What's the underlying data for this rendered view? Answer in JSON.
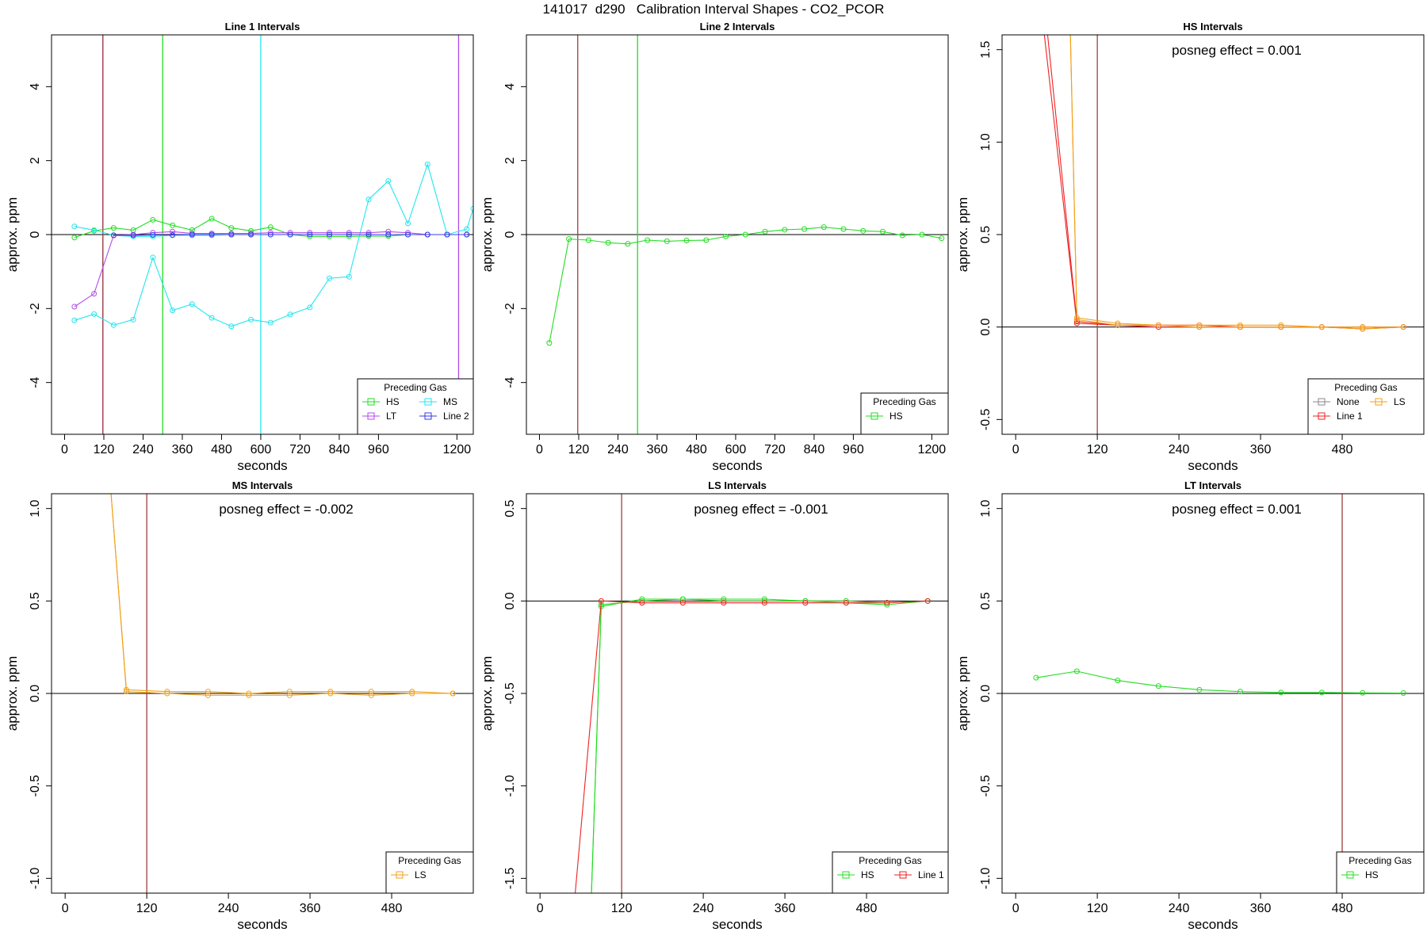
{
  "title": "141017  d290   Calibration Interval Shapes - CO2_PCOR",
  "colors": {
    "HS": "#22dd22",
    "MS": "#22e6ee",
    "LT": "#b04ce8",
    "Line 2": "#3a3ae8",
    "LS": "#f0a11a",
    "Line 1": "#ee2222",
    "None": "#888888",
    "refline": "#a04040",
    "axis": "#000000"
  },
  "chart_data": [
    {
      "type": "line",
      "title": "Line 1 Intervals",
      "xlabel": "seconds",
      "ylabel": "approx. ppm",
      "xlim": [
        -40,
        1250
      ],
      "ylim": [
        -5.4,
        5.4
      ],
      "xticks": [
        0,
        120,
        240,
        360,
        480,
        600,
        720,
        840,
        960,
        1200
      ],
      "yticks": [
        -4,
        -2,
        0,
        2,
        4
      ],
      "vlines": [
        {
          "x": 117,
          "color": "LT"
        },
        {
          "x": 117,
          "color": "refline"
        },
        {
          "x": 300,
          "color": "HS"
        },
        {
          "x": 600,
          "color": "MS"
        },
        {
          "x": 1205,
          "color": "LT"
        }
      ],
      "annotation": "",
      "legend": {
        "title": "Preceding Gas",
        "position": "bottom-right",
        "cols": 2,
        "entries": [
          "HS",
          "MS",
          "LT",
          "Line 2"
        ]
      },
      "series": [
        {
          "name": "HS",
          "x": [
            30,
            90,
            150,
            210,
            270,
            330,
            390,
            450,
            510,
            570,
            630,
            690,
            750,
            810,
            870,
            930,
            990,
            1050,
            1110,
            1170,
            1230
          ],
          "values": [
            -0.08,
            0.1,
            0.18,
            0.12,
            0.4,
            0.25,
            0.12,
            0.43,
            0.18,
            0.1,
            0.2,
            0.0,
            -0.05,
            -0.05,
            -0.05,
            -0.04,
            -0.04,
            0.0,
            0.0,
            0.0,
            0.0
          ]
        },
        {
          "name": "MS",
          "x": [
            30,
            90,
            150,
            210,
            270,
            330,
            390,
            450,
            510,
            570,
            630,
            690,
            750,
            810,
            870,
            930,
            990,
            1050,
            1110,
            1170,
            1230,
            1250
          ],
          "values": [
            0.22,
            0.12,
            -0.02,
            -0.05,
            -0.05,
            -0.02,
            -0.02,
            -0.02,
            0.0,
            0.0,
            0.0,
            0.0,
            0.0,
            0.0,
            0.0,
            0.0,
            0.0,
            0.0,
            0.0,
            0.0,
            0.15,
            0.7
          ]
        },
        {
          "name": "MS",
          "x": [
            30,
            90,
            150,
            210,
            270,
            330,
            390,
            450,
            510,
            570,
            630,
            690,
            750,
            810,
            870,
            930,
            990,
            1050,
            1110,
            1170,
            1230
          ],
          "values": [
            -2.32,
            -2.15,
            -2.45,
            -2.3,
            -0.62,
            -2.05,
            -1.88,
            -2.25,
            -2.48,
            -2.3,
            -2.38,
            -2.16,
            -1.97,
            -1.18,
            -1.14,
            0.95,
            1.45,
            0.3,
            1.9,
            0.0,
            0.0
          ]
        },
        {
          "name": "LT",
          "x": [
            30,
            90,
            150,
            210,
            270,
            330,
            390,
            450,
            510,
            570,
            630,
            690,
            750,
            810,
            870,
            930,
            990,
            1050,
            1110,
            1170,
            1230
          ],
          "values": [
            -1.95,
            -1.6,
            -0.02,
            0.0,
            0.05,
            0.08,
            0.03,
            0.03,
            0.03,
            0.03,
            0.05,
            0.05,
            0.05,
            0.05,
            0.05,
            0.05,
            0.08,
            0.05,
            0.0,
            0.0,
            0.0
          ]
        },
        {
          "name": "Line 2",
          "x": [
            150,
            210,
            270,
            330,
            390,
            450,
            510,
            570,
            630,
            690,
            750,
            810,
            870,
            930,
            990,
            1050,
            1110,
            1170,
            1230
          ],
          "values": [
            -0.02,
            -0.02,
            -0.01,
            -0.01,
            0.0,
            0.0,
            0.0,
            0.0,
            0.0,
            0.0,
            0.0,
            0.0,
            0.0,
            0.0,
            0.0,
            0.0,
            0.0,
            0.0,
            0.0
          ]
        }
      ]
    },
    {
      "type": "line",
      "title": "Line 2 Intervals",
      "xlabel": "seconds",
      "ylabel": "approx. ppm",
      "xlim": [
        -40,
        1250
      ],
      "ylim": [
        -5.4,
        5.4
      ],
      "xticks": [
        0,
        120,
        240,
        360,
        480,
        600,
        720,
        840,
        960,
        1200
      ],
      "yticks": [
        -4,
        -2,
        0,
        2,
        4
      ],
      "vlines": [
        {
          "x": 117,
          "color": "refline"
        },
        {
          "x": 300,
          "color": "HS"
        }
      ],
      "annotation": "",
      "legend": {
        "title": "Preceding Gas",
        "position": "bottom-right",
        "cols": 1,
        "entries": [
          "HS"
        ]
      },
      "series": [
        {
          "name": "HS",
          "x": [
            30,
            90,
            150,
            210,
            270,
            330,
            390,
            450,
            510,
            570,
            630,
            690,
            750,
            810,
            870,
            930,
            990,
            1050,
            1110,
            1170,
            1230
          ],
          "values": [
            -2.93,
            -0.12,
            -0.15,
            -0.22,
            -0.25,
            -0.15,
            -0.18,
            -0.16,
            -0.15,
            -0.05,
            0.0,
            0.08,
            0.13,
            0.15,
            0.2,
            0.15,
            0.1,
            0.08,
            -0.02,
            0.0,
            -0.1
          ]
        }
      ]
    },
    {
      "type": "line",
      "title": "HS Intervals",
      "xlabel": "seconds",
      "ylabel": "approx. ppm",
      "xlim": [
        -20,
        600
      ],
      "ylim": [
        -0.58,
        1.58
      ],
      "xticks": [
        0,
        120,
        240,
        360,
        480
      ],
      "yticks": [
        -0.5,
        0.0,
        0.5,
        1.0,
        1.5
      ],
      "vlines": [
        {
          "x": 120,
          "color": "refline"
        }
      ],
      "annotation": "posneg effect = 0.001",
      "legend": {
        "title": "Preceding Gas",
        "position": "bottom-right",
        "cols": 2,
        "entries": [
          "None",
          "LS",
          "Line 1"
        ]
      },
      "series": [
        {
          "name": "Line 1",
          "x": [
            40,
            90,
            150,
            210,
            270,
            330,
            390,
            450,
            510,
            570
          ],
          "values": [
            1.65,
            0.02,
            0.01,
            0.0,
            0.0,
            0.0,
            0.0,
            0.0,
            0.0,
            0.0
          ]
        },
        {
          "name": "Line 1",
          "x": [
            45,
            90,
            150,
            210,
            270,
            330,
            390,
            450,
            510,
            570
          ],
          "values": [
            1.65,
            0.03,
            0.01,
            0.01,
            0.01,
            0.0,
            0.0,
            0.0,
            -0.01,
            0.0
          ]
        },
        {
          "name": "LS",
          "x": [
            80,
            90,
            150,
            210,
            270,
            330,
            390,
            450,
            510,
            570
          ],
          "values": [
            1.65,
            0.05,
            0.02,
            0.01,
            0.01,
            0.01,
            0.01,
            0.0,
            0.0,
            0.0
          ]
        },
        {
          "name": "LS",
          "x": [
            80,
            90,
            150,
            210,
            270,
            330,
            390,
            450,
            510,
            570
          ],
          "values": [
            1.65,
            0.04,
            0.01,
            0.01,
            0.0,
            0.0,
            0.0,
            0.0,
            -0.01,
            0.0
          ]
        }
      ]
    },
    {
      "type": "line",
      "title": "MS Intervals",
      "xlabel": "seconds",
      "ylabel": "approx. ppm",
      "xlim": [
        -20,
        600
      ],
      "ylim": [
        -1.08,
        1.08
      ],
      "xticks": [
        0,
        120,
        240,
        360,
        480
      ],
      "yticks": [
        -1.0,
        -0.5,
        0.0,
        0.5,
        1.0
      ],
      "vlines": [
        {
          "x": 120,
          "color": "refline"
        }
      ],
      "annotation": "posneg effect = -0.002",
      "legend": {
        "title": "Preceding Gas",
        "position": "bottom-right",
        "cols": 1,
        "entries": [
          "LS"
        ]
      },
      "series": [
        {
          "name": "LS",
          "x": [
            67,
            90,
            150,
            210,
            270,
            330,
            390,
            450,
            510,
            570
          ],
          "values": [
            1.1,
            0.02,
            0.01,
            0.01,
            0.0,
            0.01,
            0.01,
            0.01,
            0.01,
            0.0
          ]
        },
        {
          "name": "LS",
          "x": [
            67,
            90,
            150,
            210,
            270,
            330,
            390,
            450,
            510,
            570
          ],
          "values": [
            1.1,
            0.01,
            0.0,
            -0.01,
            -0.01,
            -0.01,
            0.0,
            -0.01,
            0.0,
            0.0
          ]
        }
      ]
    },
    {
      "type": "line",
      "title": "LS Intervals",
      "xlabel": "seconds",
      "ylabel": "approx. ppm",
      "xlim": [
        -20,
        600
      ],
      "ylim": [
        -1.58,
        0.58
      ],
      "xticks": [
        0,
        120,
        240,
        360,
        480
      ],
      "yticks": [
        -1.5,
        -1.0,
        -0.5,
        0.0,
        0.5
      ],
      "vlines": [
        {
          "x": 120,
          "color": "refline"
        }
      ],
      "annotation": "posneg effect = -0.001",
      "legend": {
        "title": "Preceding Gas",
        "position": "bottom-right",
        "cols": 2,
        "entries": [
          "HS",
          "Line 1"
        ]
      },
      "series": [
        {
          "name": "HS",
          "x": [
            75,
            90,
            150,
            210,
            270,
            330,
            390,
            450,
            510,
            570
          ],
          "values": [
            -1.65,
            -0.03,
            0.01,
            0.01,
            0.0,
            0.0,
            0.0,
            -0.01,
            -0.02,
            0.0
          ]
        },
        {
          "name": "HS",
          "x": [
            75,
            90,
            150,
            210,
            270,
            330,
            390,
            450,
            510,
            570
          ],
          "values": [
            -1.65,
            -0.02,
            0.0,
            0.01,
            0.01,
            0.01,
            0.0,
            0.0,
            -0.01,
            0.0
          ]
        },
        {
          "name": "Line 1",
          "x": [
            50,
            90,
            150,
            210,
            270,
            330,
            390,
            450,
            510,
            570
          ],
          "values": [
            -1.65,
            0.0,
            -0.01,
            -0.01,
            -0.01,
            -0.01,
            -0.01,
            -0.01,
            -0.01,
            0.0
          ]
        }
      ]
    },
    {
      "type": "line",
      "title": "LT Intervals",
      "xlabel": "seconds",
      "ylabel": "approx. ppm",
      "xlim": [
        -20,
        600
      ],
      "ylim": [
        -1.08,
        1.08
      ],
      "xticks": [
        0,
        120,
        240,
        360,
        480
      ],
      "yticks": [
        -1.0,
        -0.5,
        0.0,
        0.5,
        1.0
      ],
      "vlines": [
        {
          "x": 480,
          "color": "refline"
        }
      ],
      "annotation": "posneg effect = 0.001",
      "legend": {
        "title": "Preceding Gas",
        "position": "bottom-right",
        "cols": 1,
        "entries": [
          "HS"
        ]
      },
      "series": [
        {
          "name": "HS",
          "x": [
            30,
            90,
            150,
            210,
            270,
            330,
            390,
            450,
            510,
            570
          ],
          "values": [
            0.085,
            0.12,
            0.07,
            0.04,
            0.02,
            0.01,
            0.005,
            0.005,
            0.003,
            0.002
          ]
        }
      ]
    }
  ]
}
